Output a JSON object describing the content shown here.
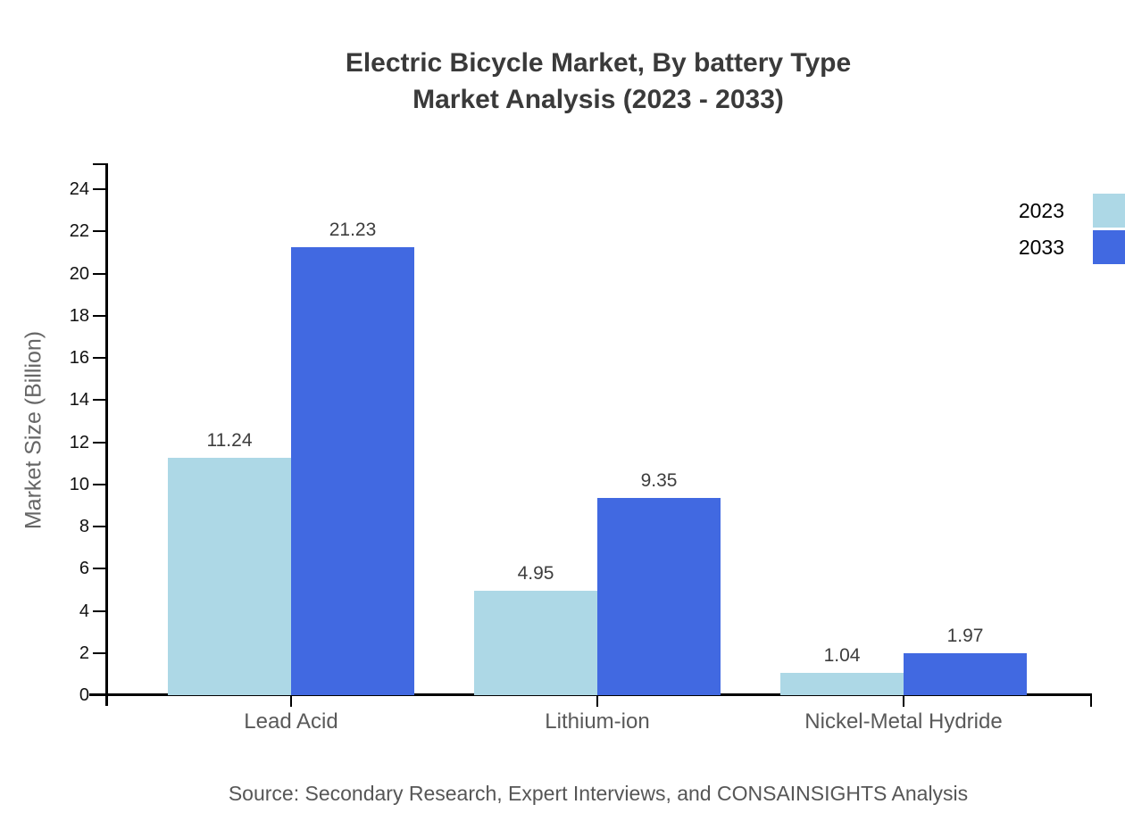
{
  "title": {
    "line1": "Electric Bicycle Market, By battery Type",
    "line2": "Market Analysis (2023 - 2033)"
  },
  "source": "Source: Secondary Research, Expert Interviews, and CONSAINSIGHTS Analysis",
  "legend": {
    "items": [
      {
        "label": "2023",
        "color": "#ADD8E6"
      },
      {
        "label": "2033",
        "color": "#4169E1"
      }
    ]
  },
  "colors": {
    "series_2023": "#ADD8E6",
    "series_2033": "#4169E1",
    "axis": "#000000",
    "title_text": "#3a3a3a",
    "muted_text": "#595959"
  },
  "chart_data": {
    "type": "bar",
    "title": "Electric Bicycle Market, By battery Type Market Analysis (2023 - 2033)",
    "categories": [
      "Lead Acid",
      "Lithium-ion",
      "Nickel-Metal Hydride"
    ],
    "series": [
      {
        "name": "2023",
        "color": "#ADD8E6",
        "values": [
          11.24,
          4.95,
          1.04
        ]
      },
      {
        "name": "2033",
        "color": "#4169E1",
        "values": [
          21.23,
          9.35,
          1.97
        ]
      }
    ],
    "xlabel": "",
    "ylabel": "Market Size (Billion)",
    "ylim": [
      0,
      24
    ],
    "ytick_step": 2,
    "yticks": [
      0,
      2,
      4,
      6,
      8,
      10,
      12,
      14,
      16,
      18,
      20,
      22,
      24
    ],
    "grid": false,
    "legend_position": "top-right",
    "value_labels": true,
    "value_label_format": "2-decimals"
  }
}
